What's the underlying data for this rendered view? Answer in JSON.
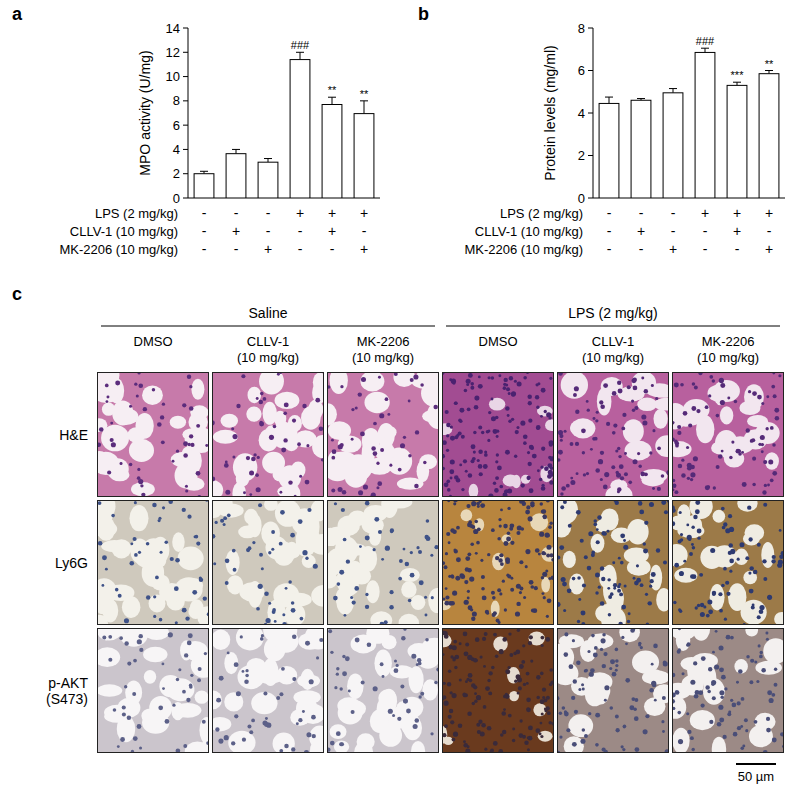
{
  "chart_data": [
    {
      "type": "bar",
      "panel_label": "a",
      "y_label": "MPO activity (U/mg)",
      "categories": [
        null,
        null,
        null,
        null,
        null,
        null
      ],
      "values": [
        2.0,
        3.65,
        2.95,
        11.4,
        7.7,
        6.95
      ],
      "errors": [
        0.2,
        0.35,
        0.3,
        0.6,
        0.6,
        1.05
      ],
      "significance": [
        null,
        null,
        null,
        "###",
        "**",
        "**"
      ],
      "color": "#ffffff",
      "grid": false,
      "ylim": [
        0,
        14
      ],
      "yticks": [
        0,
        2,
        4,
        6,
        8,
        10,
        12,
        14
      ],
      "conditions": [
        {
          "label": "LPS (2 mg/kg)",
          "signs": [
            "-",
            "-",
            "-",
            "+",
            "+",
            "+"
          ]
        },
        {
          "label": "CLLV-1 (10 mg/kg)",
          "signs": [
            "-",
            "+",
            "-",
            "-",
            "+",
            "-"
          ]
        },
        {
          "label": "MK-2206 (10 mg/kg)",
          "signs": [
            "-",
            "-",
            "+",
            "-",
            "-",
            "+"
          ]
        }
      ]
    },
    {
      "type": "bar",
      "panel_label": "b",
      "y_label": "Protein levels (mg/ml)",
      "categories": [
        null,
        null,
        null,
        null,
        null,
        null
      ],
      "values": [
        4.45,
        4.6,
        4.95,
        6.85,
        5.3,
        5.85
      ],
      "errors": [
        0.3,
        0.08,
        0.2,
        0.2,
        0.15,
        0.15
      ],
      "significance": [
        null,
        null,
        null,
        "###",
        "***",
        "**"
      ],
      "color": "#ffffff",
      "grid": false,
      "ylim": [
        0,
        8
      ],
      "yticks": [
        0,
        2,
        4,
        6,
        8
      ],
      "conditions": [
        {
          "label": "LPS (2 mg/kg)",
          "signs": [
            "-",
            "-",
            "-",
            "+",
            "+",
            "+"
          ]
        },
        {
          "label": "CLLV-1 (10 mg/kg)",
          "signs": [
            "-",
            "+",
            "-",
            "-",
            "+",
            "-"
          ]
        },
        {
          "label": "MK-2206 (10 mg/kg)",
          "signs": [
            "-",
            "-",
            "+",
            "-",
            "-",
            "+"
          ]
        }
      ]
    }
  ],
  "panel_c": {
    "panel_label": "c",
    "groups": [
      {
        "label": "Saline",
        "columns": [
          [
            "DMSO"
          ],
          [
            "CLLV-1",
            "(10 mg/kg)"
          ],
          [
            "MK-2206",
            "(10 mg/kg)"
          ]
        ]
      },
      {
        "label": "LPS (2 mg/kg)",
        "columns": [
          [
            "DMSO"
          ],
          [
            "CLLV-1",
            "(10 mg/kg)"
          ],
          [
            "MK-2206",
            "(10 mg/kg)"
          ]
        ]
      }
    ],
    "rows": [
      [
        "H&E"
      ],
      [
        "Ly6G"
      ],
      [
        "p-AKT",
        "(S473)"
      ]
    ],
    "scale_bar": "50 µm"
  }
}
